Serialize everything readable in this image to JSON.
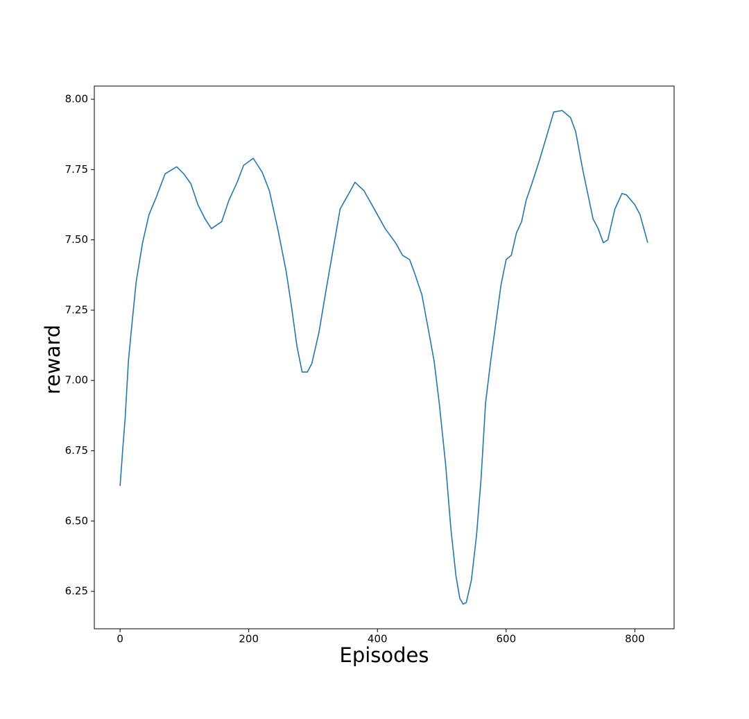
{
  "chart_data": {
    "type": "line",
    "xlabel": "Episodes",
    "ylabel": "reward",
    "x": [
      0,
      4,
      8,
      13,
      18,
      25,
      35,
      45,
      56,
      70,
      88,
      99,
      110,
      121,
      132,
      142,
      158,
      169,
      182,
      192,
      207,
      221,
      232,
      245,
      258,
      266,
      275,
      283,
      291,
      298,
      309,
      320,
      331,
      342,
      358,
      365,
      379,
      395,
      412,
      428,
      439,
      450,
      458,
      469,
      480,
      488,
      496,
      506,
      514,
      522,
      528,
      533,
      538,
      546,
      554,
      561,
      568,
      576,
      584,
      592,
      600,
      608,
      616,
      624,
      631,
      640,
      652,
      665,
      674,
      687,
      700,
      708,
      719,
      735,
      743,
      751,
      758,
      769,
      780,
      787,
      800,
      808,
      820
    ],
    "values": [
      6.625,
      6.75,
      6.87,
      7.07,
      7.19,
      7.35,
      7.49,
      7.59,
      7.65,
      7.735,
      7.76,
      7.735,
      7.7,
      7.625,
      7.575,
      7.54,
      7.565,
      7.64,
      7.705,
      7.765,
      7.79,
      7.74,
      7.675,
      7.54,
      7.39,
      7.27,
      7.12,
      7.03,
      7.03,
      7.06,
      7.17,
      7.32,
      7.465,
      7.61,
      7.675,
      7.705,
      7.675,
      7.61,
      7.54,
      7.49,
      7.445,
      7.43,
      7.38,
      7.305,
      7.17,
      7.07,
      6.92,
      6.7,
      6.475,
      6.305,
      6.225,
      6.205,
      6.21,
      6.29,
      6.45,
      6.65,
      6.92,
      7.07,
      7.205,
      7.34,
      7.43,
      7.445,
      7.525,
      7.565,
      7.64,
      7.7,
      7.785,
      7.885,
      7.955,
      7.96,
      7.935,
      7.885,
      7.75,
      7.575,
      7.54,
      7.49,
      7.5,
      7.61,
      7.665,
      7.66,
      7.625,
      7.59,
      7.49
    ],
    "color": "#1f77b4",
    "xlim": [
      -40,
      861
    ],
    "ylim": [
      6.117,
      8.047
    ],
    "xticks": [
      0,
      200,
      400,
      600,
      800
    ],
    "yticks": [
      {
        "value": 6.25,
        "label": "6.25"
      },
      {
        "value": 6.5,
        "label": "6.50"
      },
      {
        "value": 6.75,
        "label": "6.75"
      },
      {
        "value": 7,
        "label": "7.00"
      },
      {
        "value": 7.25,
        "label": "7.25"
      },
      {
        "value": 7.5,
        "label": "7.50"
      },
      {
        "value": 7.75,
        "label": "7.75"
      },
      {
        "value": 8,
        "label": "8.00"
      }
    ]
  }
}
